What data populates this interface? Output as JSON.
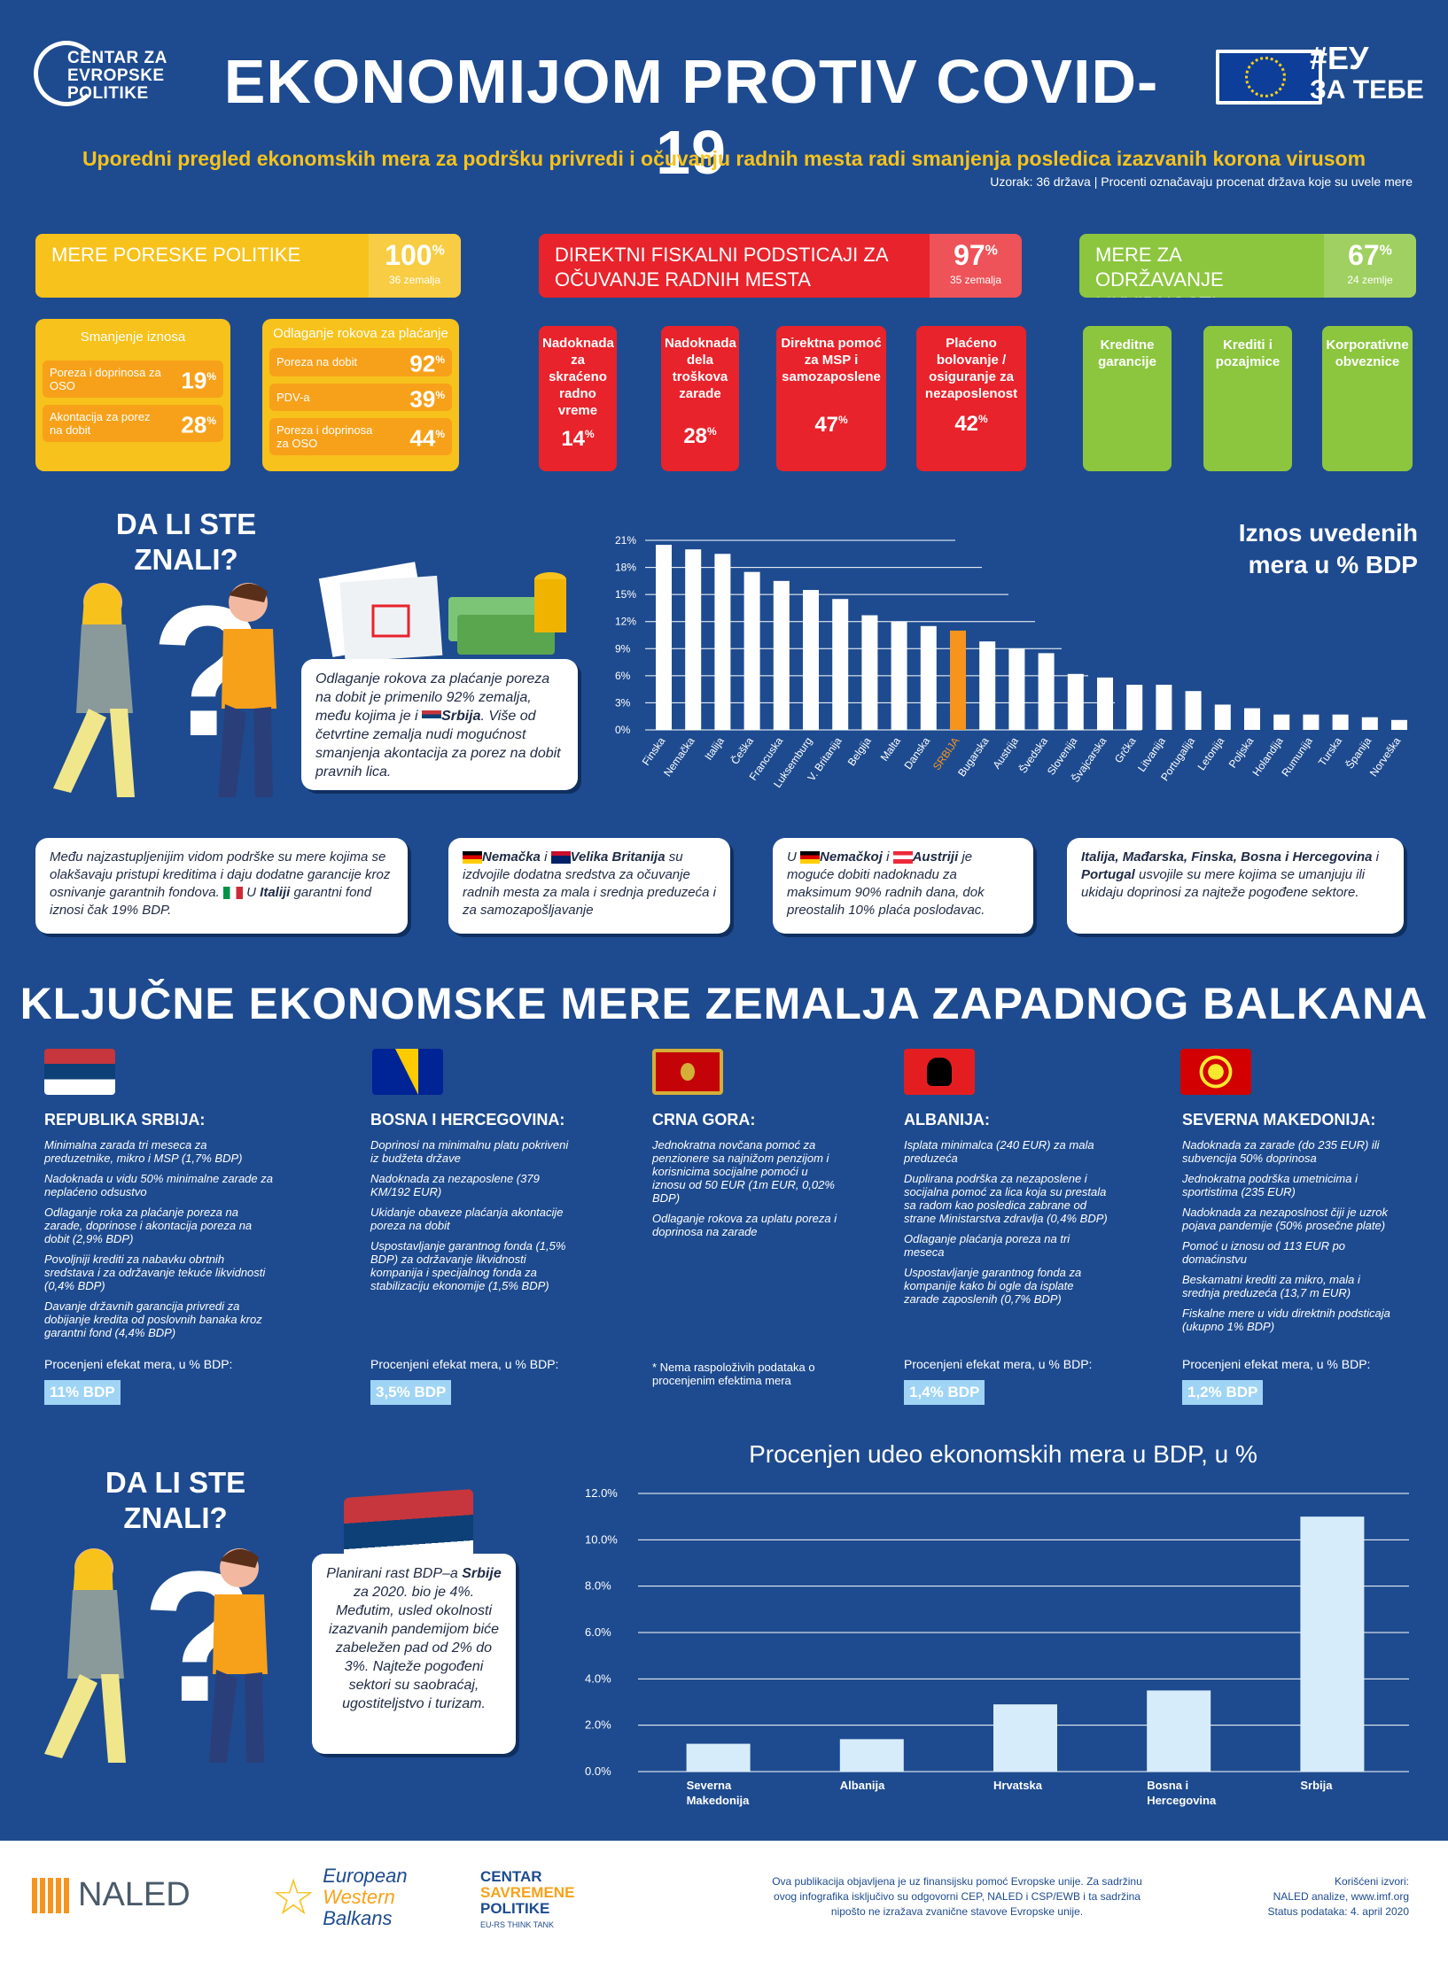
{
  "header": {
    "org_logo_text": [
      "CENTAR ZA",
      "EVROPSKE",
      "POLITIKE"
    ],
    "title": "EKONOMIJOM PROTIV COVID-19",
    "eu_tag": [
      "#ЕУ",
      "ЗА ТЕБЕ"
    ],
    "subtitle": "Uporedni pregled ekonomskih mera za podršku privredi i očuvanju radnih mesta radi smanjenja posledica izazvanih korona virusom",
    "sample": "Uzorak: 36 država   |   Procenti označavaju procenat država koje su uvele mere"
  },
  "categories": [
    {
      "label": "MERE PORESKE POLITIKE",
      "pct": "100",
      "sub": "36 zemalja",
      "color": "#f7c21b"
    },
    {
      "label": "DIREKTNI FISKALNI PODSTICAJI ZA OČUVANJE RADNIH MESTA",
      "pct": "97",
      "sub": "35 zemalja",
      "color": "#e8232b"
    },
    {
      "label": "MERE ZA ODRŽAVANJE LIKVIDNOSTI",
      "pct": "67",
      "sub": "24 zemlje",
      "color": "#8cc63f"
    }
  ],
  "tax": {
    "reduce": {
      "title": "Smanjenje iznosa",
      "rows": [
        {
          "label": "Poreza i doprinosa za OSO",
          "pct": "19"
        },
        {
          "label": "Akontacija za porez na dobit",
          "pct": "28"
        }
      ]
    },
    "defer": {
      "title": "Odlaganje rokova za plaćanje",
      "rows": [
        {
          "label": "Poreza na dobit",
          "pct": "92"
        },
        {
          "label": "PDV-a",
          "pct": "39"
        },
        {
          "label": "Poreza i doprinosa za OSO",
          "pct": "44"
        }
      ]
    }
  },
  "fiscal": [
    {
      "label": "Nadoknada za skraćeno radno vreme",
      "pct": "14"
    },
    {
      "label": "Nadoknada dela troškova zarade",
      "pct": "28"
    },
    {
      "label": "Direktna pomoć za MSP i samozaposlene",
      "pct": "47"
    },
    {
      "label": "Plaćeno bolovanje / osiguranje za nezaposlenost",
      "pct": "42"
    }
  ],
  "liquidity": [
    "Kreditne garancije",
    "Krediti i pozajmice",
    "Korporativne obveznice"
  ],
  "know": {
    "title": "DA LI STE ZNALI?"
  },
  "bubble1": {
    "a": "Odlaganje rokova za plaćanje poreza na dobit je primenilo 92% zemalja, među kojima je i",
    "country": "Srbija",
    "b": ". Više od četvrtine zemalja nudi mogućnost smanjenja akontacija za porez na dobit pravnih lica."
  },
  "chart1_title": "Iznos uvedenih mera u % BDP",
  "chart_data": [
    {
      "type": "bar",
      "title": "Iznos uvedenih mera u % BDP",
      "categories": [
        "Finska",
        "Nemačka",
        "Italija",
        "Češka",
        "Francuska",
        "Luksemburg",
        "V. Britanija",
        "Belgija",
        "Malta",
        "Danska",
        "SRBIJA",
        "Bugarska",
        "Austrija",
        "Švedska",
        "Slovenija",
        "Švajcarska",
        "Grčka",
        "Litvanija",
        "Portugalija",
        "Letonija",
        "Poljska",
        "Holandija",
        "Rumunija",
        "Turska",
        "Španija",
        "Norveška"
      ],
      "values": [
        20.5,
        20.0,
        19.5,
        17.5,
        16.5,
        15.5,
        14.5,
        12.7,
        12.0,
        11.5,
        11.0,
        9.8,
        9.0,
        8.5,
        6.2,
        5.8,
        5.0,
        5.0,
        4.3,
        2.8,
        2.4,
        1.7,
        1.7,
        1.7,
        1.4,
        1.1
      ],
      "highlight": "SRBIJA",
      "highlight_color": "#f7941d",
      "yticks": [
        "0%",
        "3%",
        "6%",
        "9%",
        "12%",
        "15%",
        "18%",
        "21%"
      ],
      "ylim": [
        0,
        21
      ]
    },
    {
      "type": "bar",
      "title": "Procenjen udeo ekonomskih mera u BDP, u %",
      "categories": [
        "Severna Makedonija",
        "Albanija",
        "Hrvatska",
        "Bosna i Hercegovina",
        "Srbija"
      ],
      "values": [
        1.2,
        1.4,
        2.9,
        3.5,
        11.0
      ],
      "yticks": [
        "0.0%",
        "2.0%",
        "4.0%",
        "6.0%",
        "8.0%",
        "10.0%",
        "12.0%"
      ],
      "ylim": [
        0,
        12
      ]
    }
  ],
  "facts": [
    {
      "a": "Među najzastupljenijim vidom podrške su mere kojima se olakšavaju pristupi kreditima i daju dodatne garancije kroz osnivanje garantnih fondova.",
      "b": "U",
      "c": "Italiji",
      "d": "garantni fond iznosi čak 19% BDP."
    },
    {
      "a": "Nemačka",
      "b": "i",
      "c": "Velika Britanija",
      "d": "su izdvojile dodatna sredstva za očuvanje radnih mesta za mala i srednja preduzeća i za samozapošljavanje"
    },
    {
      "a": "U",
      "b": "Nemačkoj",
      "c": "i",
      "d": "Austriji",
      "e": "je moguće dobiti nadoknadu za maksimum 90% radnih dana, dok preostalih 10% plaća poslodavac."
    },
    {
      "a": "Italija,",
      "b": "Mađarska,",
      "c": "Finska,",
      "d": "Bosna i Hercegovina",
      "e": "i",
      "f": "Portugal",
      "g": "usvojile su mere kojima se umanjuju ili ukidaju doprinosi za najteže pogođene sektore."
    }
  ],
  "balkans_title": "KLJUČNE EKONOMSKE MERE ZEMALJA ZAPADNOG BALKANA",
  "balkans": [
    {
      "name": "REPUBLIKA SRBIJA:",
      "items": [
        "Minimalna zarada tri meseca za preduzetnike, mikro i MSP (1,7% BDP)",
        "Nadoknada u vidu 50% minimalne zarade za neplaćeno odsustvo",
        "Odlaganje roka za plaćanje poreza na zarade, doprinose i akontacija poreza na dobit (2,9% BDP)",
        "Povoljniji krediti za nabavku obrtnih sredstava i za održavanje tekuće likvidnosti (0,4% BDP)",
        "Davanje državnih garancija privredi za dobijanje kredita od poslovnih banaka kroz garantni fond (4,4% BDP)"
      ],
      "eff_label": "Procenjeni efekat mera, u % BDP:",
      "eff": "11% BDP"
    },
    {
      "name": "BOSNA I HERCEGOVINA:",
      "items": [
        "Doprinosi na minimalnu platu pokriveni iz budžeta države",
        "Nadoknada za nezaposlene (379 KM/192 EUR)",
        "Ukidanje obaveze plaćanja akontacije poreza na dobit",
        "Uspostavljanje garantnog fonda (1,5% BDP) za održavanje likvidnosti kompanija i specijalnog fonda za stabilizaciju ekonomije (1,5% BDP)"
      ],
      "eff_label": "Procenjeni efekat mera, u % BDP:",
      "eff": "3,5% BDP"
    },
    {
      "name": "CRNA GORA:",
      "items": [
        "Jednokratna novčana pomoć za penzionere sa najnižom penzijom i korisnicima socijalne pomoći u iznosu od 50 EUR (1m EUR, 0,02% BDP)",
        "Odlaganje rokova za uplatu poreza i doprinosa na zarade"
      ],
      "eff_label": "* Nema raspoloživih podataka o procenjenim efektima mera",
      "eff": ""
    },
    {
      "name": "ALBANIJA:",
      "items": [
        "Isplata minimalca (240 EUR) za mala preduzeća",
        "Duplirana podrška za nezaposlene i socijalna pomoć za lica koja su prestala sa radom kao posledica zabrane od strane Ministarstva zdravlja (0,4% BDP)",
        "Odlaganje plaćanja poreza na tri meseca",
        "Uspostavljanje garantnog fonda za kompanije kako bi ogle da isplate zarade zaposlenih (0,7% BDP)"
      ],
      "eff_label": "Procenjeni efekat mera, u % BDP:",
      "eff": "1,4% BDP"
    },
    {
      "name": "SEVERNA MAKEDONIJA:",
      "items": [
        "Nadoknada za zarade (do 235 EUR) ili subvencija 50% doprinosa",
        "Jednokratna podrška umetnicima i sportistima (235 EUR)",
        "Nadoknada za nezaposlnost čiji je uzrok pojava pandemije (50% prosečne plate)",
        "Pomoć u iznosu od 113 EUR po domaćinstvu",
        "Beskamatni krediti za mikro, mala i srednja preduzeća (13,7 m EUR)",
        "Fiskalne mere u vidu direktnih podsticaja (ukupno 1% BDP)"
      ],
      "eff_label": "Procenjeni efekat mera, u % BDP:",
      "eff": "1,2% BDP"
    }
  ],
  "bubble2": {
    "a": "Planirani rast BDP–a",
    "country": "Srbije",
    "b": "za 2020. bio je 4%. Međutim, usled okolnosti izazvanih pandemijom biće zabeležen pad od 2% do 3%. Najteže pogođeni sektori su saobraćaj, ugostiteljstvo i turizam."
  },
  "chart2_title": "Procenjen udeo ekonomskih mera u BDP, u %",
  "footer": {
    "naled": "NALED",
    "ewb": [
      "European",
      "Western",
      "Balkans"
    ],
    "csp": [
      "CENTAR",
      "SAVREMENE",
      "POLITIKE",
      "EU-RS THINK TANK"
    ],
    "note": "Ova publikacija objavljena je uz finansijsku pomoć Evropske unije. Za sadržinu ovog infografika isključivo su odgovorni CEP, NALED i CSP/EWB i ta sadržina nipošto ne izražava zvanične stavove Evropske unije.",
    "sources": [
      "Korišćeni izvori:",
      "NALED analize, www.imf.org",
      "Status podataka: 4. april 2020"
    ]
  }
}
